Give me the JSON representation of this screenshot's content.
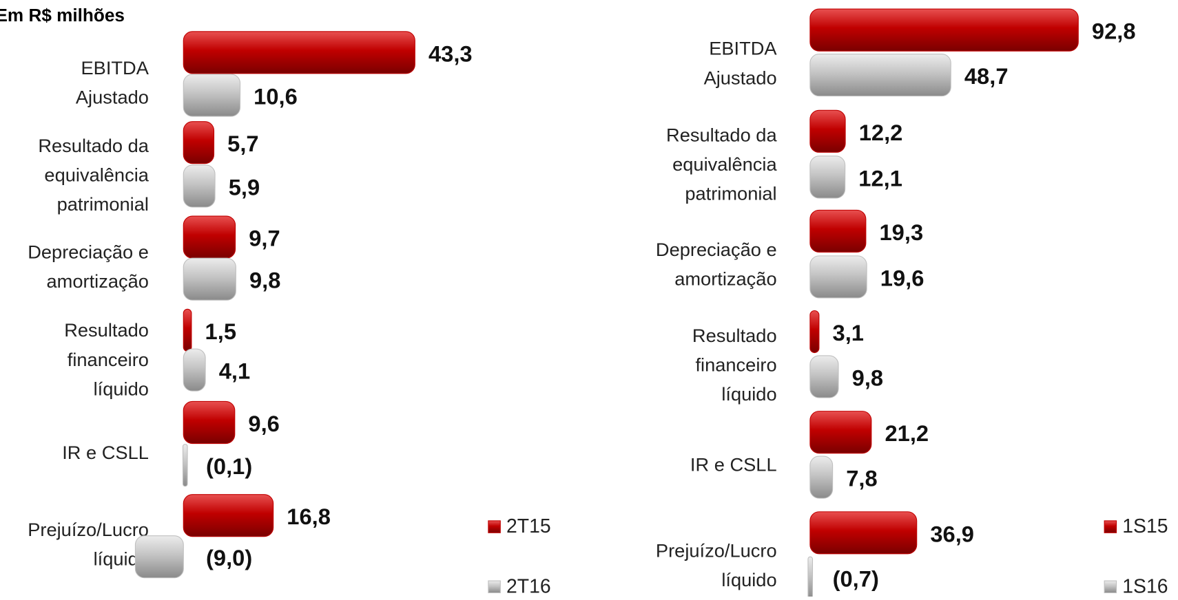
{
  "chart_data": [
    {
      "type": "bar",
      "orientation": "horizontal",
      "title": "Em R$ milhões",
      "categories": [
        [
          "EBITDA",
          "Ajustado"
        ],
        [
          "Resultado da",
          "equivalência",
          "patrimonial"
        ],
        [
          "Depreciação e",
          "amortização"
        ],
        [
          "Resultado",
          "financeiro",
          "líquido"
        ],
        [
          "IR e CSLL"
        ],
        [
          "Prejuízo/Lucro",
          "líquido"
        ]
      ],
      "series": [
        {
          "name": "2T15",
          "color": "#c00000",
          "values": [
            43.3,
            5.7,
            9.7,
            1.5,
            9.6,
            16.8
          ],
          "value_labels": [
            "43,3",
            "5,7",
            "9,7",
            "1,5",
            "9,6",
            "16,8"
          ]
        },
        {
          "name": "2T16",
          "color": "#bfbfbf",
          "values": [
            10.6,
            5.9,
            9.8,
            4.1,
            -0.1,
            -9.0
          ],
          "value_labels": [
            "10,6",
            "5,9",
            "9,8",
            "4,1",
            "(0,1)",
            "(9,0)"
          ]
        }
      ],
      "xlim": [
        -10,
        50
      ]
    },
    {
      "type": "bar",
      "orientation": "horizontal",
      "categories": [
        [
          "EBITDA",
          "Ajustado"
        ],
        [
          "Resultado da",
          "equivalência",
          "patrimonial"
        ],
        [
          "Depreciação e",
          "amortização"
        ],
        [
          "Resultado",
          "financeiro",
          "líquido"
        ],
        [
          "IR e CSLL"
        ],
        [
          "Prejuízo/Lucro",
          "líquido"
        ]
      ],
      "series": [
        {
          "name": "1S15",
          "color": "#c00000",
          "values": [
            92.8,
            12.2,
            19.3,
            3.1,
            21.2,
            36.9
          ],
          "value_labels": [
            "92,8",
            "12,2",
            "19,3",
            "3,1",
            "21,2",
            "36,9"
          ]
        },
        {
          "name": "1S16",
          "color": "#bfbfbf",
          "values": [
            48.7,
            12.1,
            19.6,
            9.8,
            7.8,
            -0.7
          ],
          "value_labels": [
            "48,7",
            "12,1",
            "19,6",
            "9,8",
            "7,8",
            "(0,7)"
          ]
        }
      ],
      "xlim": [
        -5,
        100
      ]
    }
  ]
}
